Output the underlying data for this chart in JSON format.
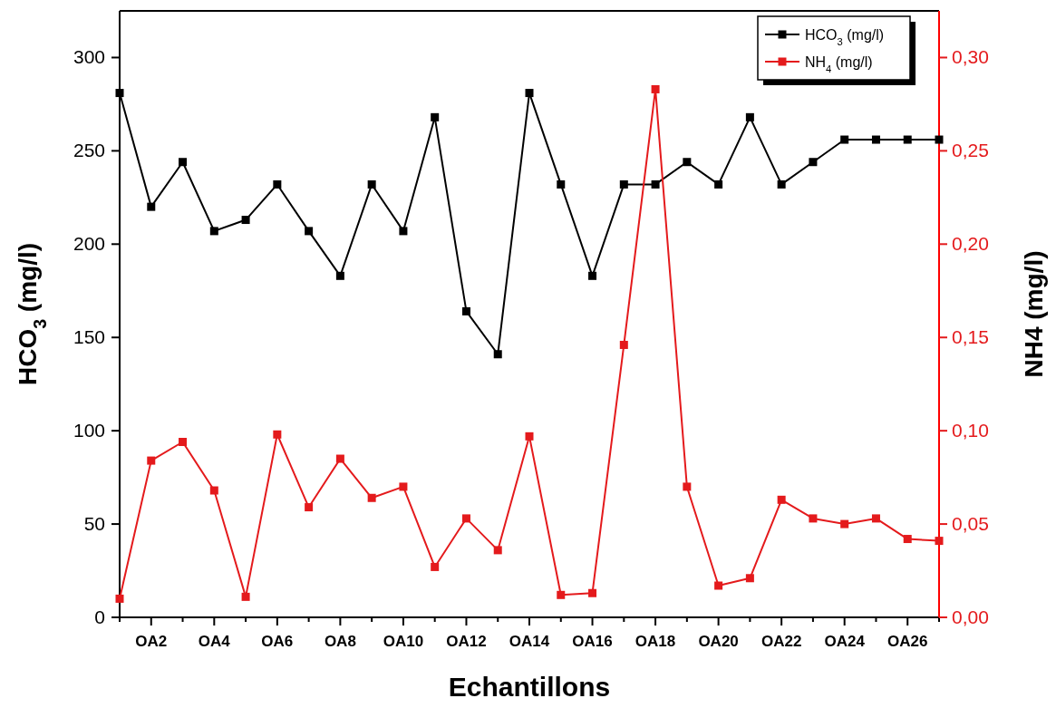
{
  "chart_data": {
    "type": "line",
    "xlabel": "Echantillons",
    "ylabel": "HCO$_{3}$ (mg/l)",
    "y2label": "NH4 (mg/l)",
    "categories": [
      null,
      "OA2",
      null,
      "OA4",
      null,
      "OA6",
      null,
      "OA8",
      null,
      "OA10",
      null,
      "OA12",
      null,
      "OA14",
      null,
      "OA16",
      null,
      "OA18",
      null,
      "OA20",
      null,
      "OA22",
      null,
      "OA24",
      null,
      "OA26",
      null
    ],
    "series": [
      {
        "name": "HCO$_{3}$ (mg/l)",
        "color": "#000000",
        "values": [
          281,
          220,
          244,
          207,
          213,
          232,
          207,
          183,
          232,
          207,
          268,
          164,
          141,
          281,
          232,
          183,
          232,
          232,
          244,
          232,
          268,
          232,
          244,
          256,
          256,
          256,
          256
        ]
      },
      {
        "name": "NH$_{4}$ (mg/l)",
        "color": "#e41a1c",
        "axis": "y2",
        "values": [
          0.01,
          0.084,
          0.094,
          0.068,
          0.011,
          0.098,
          0.059,
          0.085,
          0.064,
          0.07,
          0.027,
          0.053,
          0.036,
          0.097,
          0.012,
          0.013,
          0.146,
          0.283,
          0.07,
          0.017,
          0.021,
          0.063,
          0.053,
          0.05,
          0.053,
          0.042,
          0.041
        ]
      }
    ],
    "ylim": [
      0,
      325
    ],
    "yticks": [
      0,
      50,
      100,
      150,
      200,
      250,
      300
    ],
    "y2lim": [
      0,
      0.325
    ],
    "y2ticks": [
      {
        "value": 0,
        "label": "0,00"
      },
      {
        "value": 0.05,
        "label": "0,05"
      },
      {
        "value": 0.1,
        "label": "0,10"
      },
      {
        "value": 0.15,
        "label": "0,15"
      },
      {
        "value": 0.2,
        "label": "0,20"
      },
      {
        "value": 0.25,
        "label": "0,25"
      },
      {
        "value": 0.3,
        "label": "0,30"
      }
    ],
    "marker": "square",
    "line_style": "solid",
    "legend": "top right",
    "grid": false
  }
}
